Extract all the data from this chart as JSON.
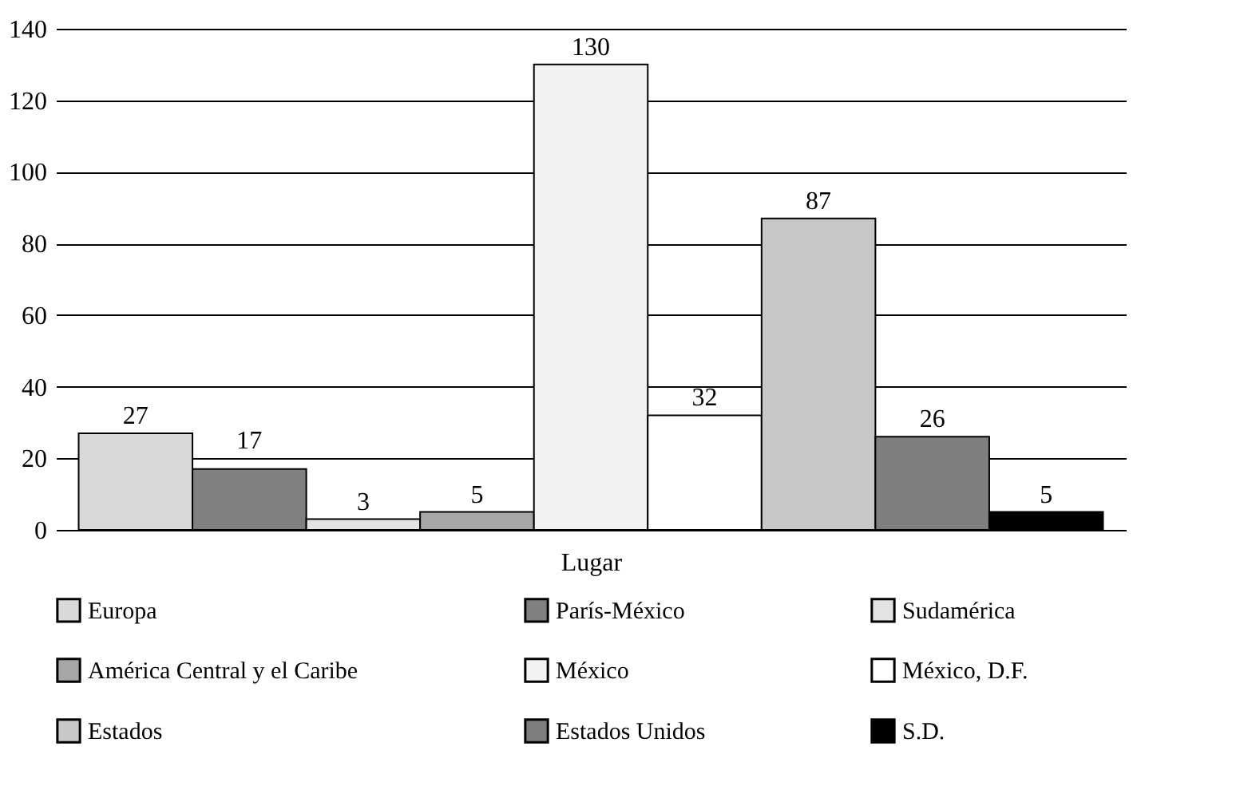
{
  "chart_data": {
    "type": "bar",
    "categories": [
      null
    ],
    "xlabel": "Lugar",
    "ylim": [
      0,
      140
    ],
    "yticks": [
      0,
      20,
      40,
      60,
      80,
      100,
      120,
      140
    ],
    "grid": "y",
    "legend": "bottom",
    "data_labels": true,
    "series": [
      {
        "name": "Europa",
        "color": "#d9d9d9",
        "values": [
          27
        ]
      },
      {
        "name": "París-México",
        "color": "#808080",
        "values": [
          17
        ]
      },
      {
        "name": "Sudamérica",
        "color": "#e3e3e3",
        "values": [
          3
        ]
      },
      {
        "name": "América Central y el Caribe",
        "color": "#a6a6a6",
        "values": [
          5
        ]
      },
      {
        "name": "México",
        "color": "#f2f2f2",
        "values": [
          130
        ]
      },
      {
        "name": "México, D.F.",
        "color": "#ffffff",
        "values": [
          32
        ]
      },
      {
        "name": "Estados",
        "color": "#c8c8c8",
        "values": [
          87
        ]
      },
      {
        "name": "Estados Unidos",
        "color": "#7f7f7f",
        "values": [
          26
        ]
      },
      {
        "name": "S.D.",
        "color": "#000000",
        "values": [
          5
        ]
      }
    ]
  }
}
